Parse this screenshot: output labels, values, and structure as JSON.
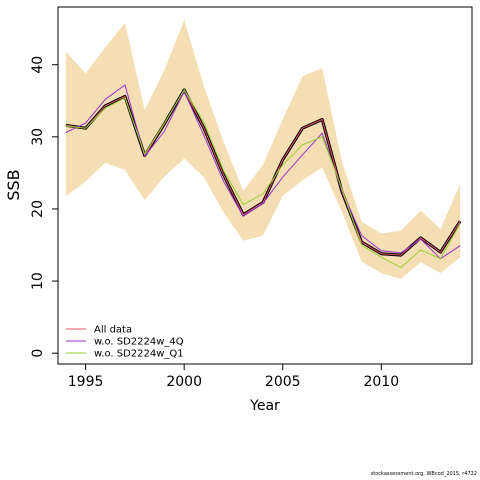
{
  "chart_data": {
    "type": "line",
    "xlabel": "Year",
    "ylabel": "SSB",
    "xlim": [
      1993.6,
      2014.6
    ],
    "ylim": [
      -1.5,
      48.0
    ],
    "xticks": [
      1995,
      2000,
      2005,
      2010
    ],
    "yticks": [
      0,
      10,
      20,
      30,
      40
    ],
    "grid": false,
    "legend_position": "bottom-left",
    "x": [
      1994,
      1995,
      1996,
      1997,
      1998,
      1999,
      2000,
      2001,
      2002,
      2003,
      2004,
      2005,
      2006,
      2007,
      2008,
      2009,
      2010,
      2011,
      2012,
      2013,
      2014
    ],
    "band": {
      "color": "#f5deb3",
      "lower": [
        21.8,
        23.8,
        26.4,
        25.4,
        21.2,
        24.5,
        27.0,
        24.4,
        19.5,
        15.6,
        16.3,
        21.8,
        24.0,
        25.7,
        19.6,
        12.7,
        11.1,
        10.3,
        12.6,
        11.1,
        13.3
      ],
      "upper": [
        41.8,
        38.8,
        42.4,
        45.8,
        33.7,
        39.3,
        46.2,
        37.0,
        29.3,
        22.5,
        26.1,
        32.4,
        38.4,
        39.5,
        26.6,
        18.2,
        16.6,
        17.0,
        19.8,
        17.2,
        23.5
      ]
    },
    "reference": {
      "color": "#000000",
      "values": [
        31.6,
        31.2,
        34.3,
        35.6,
        27.4,
        31.8,
        36.5,
        31.2,
        24.7,
        19.2,
        20.9,
        26.8,
        31.2,
        32.4,
        22.4,
        15.4,
        13.8,
        13.6,
        16.0,
        14.0,
        18.3
      ]
    },
    "series": [
      {
        "name": "All data",
        "color": "#df536b",
        "values": [
          31.6,
          31.2,
          34.3,
          35.6,
          27.4,
          31.8,
          36.5,
          31.2,
          24.7,
          19.2,
          20.9,
          26.8,
          31.2,
          32.4,
          22.4,
          15.4,
          13.8,
          13.6,
          16.0,
          14.0,
          18.3
        ]
      },
      {
        "name": "w.o. SD2224w_4Q",
        "color": "#9932cc",
        "values": [
          30.6,
          31.9,
          35.2,
          37.2,
          27.3,
          30.8,
          36.3,
          30.2,
          23.8,
          19.0,
          20.8,
          24.4,
          27.5,
          30.5,
          22.6,
          16.3,
          14.2,
          13.9,
          15.8,
          13.1,
          14.9
        ]
      },
      {
        "name": "w.o. SD2224w_Q1",
        "color": "#9acd32",
        "values": [
          31.5,
          31.2,
          34.0,
          35.4,
          27.6,
          31.9,
          36.5,
          32.0,
          25.3,
          20.6,
          22.1,
          26.1,
          28.9,
          30.0,
          22.8,
          15.0,
          13.3,
          11.9,
          14.3,
          13.1,
          18.0
        ]
      }
    ]
  },
  "footer": "stockassessment.org, WBcod_2015, r4722"
}
